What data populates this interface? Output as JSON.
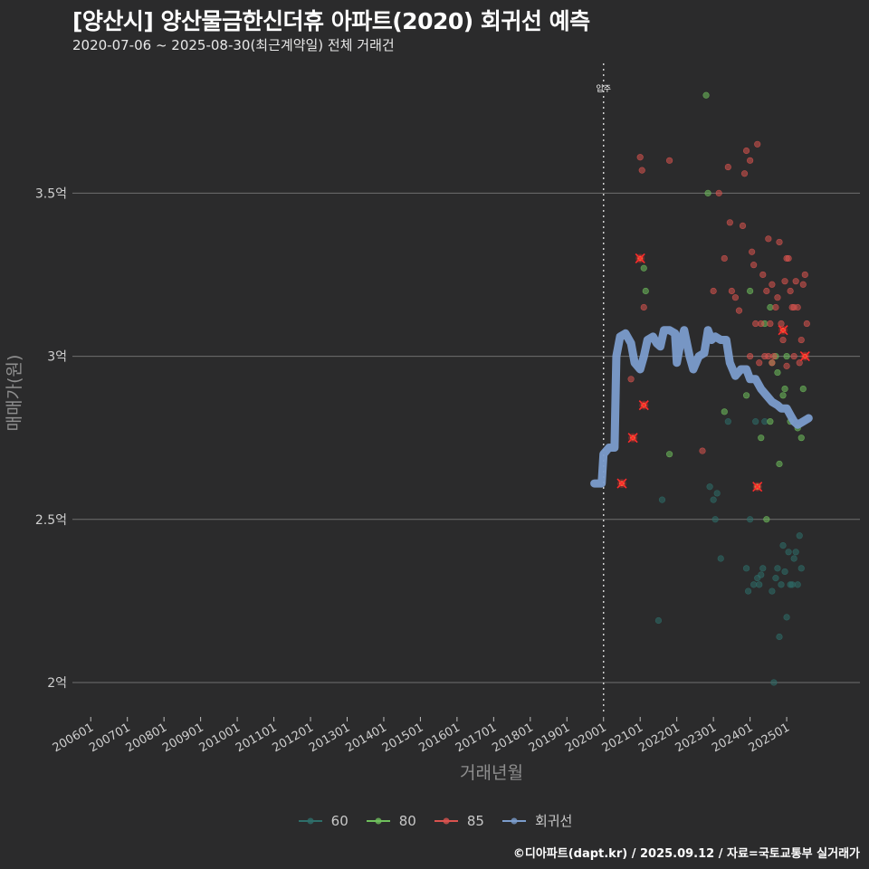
{
  "header": {
    "title": "[양산시] 양산물금한신더휴 아파트(2020) 회귀선 예측",
    "subtitle": "2020-07-06 ~ 2025-08-30(최근계약일) 전체 거래건"
  },
  "footer": {
    "credit": "©디아파트(dapt.kr) / 2025.09.12 / 자료=국토교통부 실거래가"
  },
  "colors": {
    "background": "#2b2b2c",
    "grid": "#6f6f6f",
    "s60": "#2e6e6a",
    "s80": "#6fbf5c",
    "s85": "#d9534f",
    "regression": "#7b9ccc",
    "highlight": "#ff2a2a"
  },
  "chart_data": {
    "type": "scatter",
    "title": "[양산시] 양산물금한신더휴 아파트(2020) 회귀선 예측",
    "xlabel": "거래년월",
    "ylabel": "매매가(원)",
    "xlim": [
      2005.5,
      2027.0
    ],
    "ylim": [
      1.9,
      3.92
    ],
    "y_ticks": [
      {
        "value": 2.0,
        "label": "2억"
      },
      {
        "value": 2.5,
        "label": "2.5억"
      },
      {
        "value": 3.0,
        "label": "3억"
      },
      {
        "value": 3.5,
        "label": "3.5억"
      }
    ],
    "x_ticks": [
      {
        "value": 2006,
        "label": "200601"
      },
      {
        "value": 2007,
        "label": "200701"
      },
      {
        "value": 2008,
        "label": "200801"
      },
      {
        "value": 2009,
        "label": "200901"
      },
      {
        "value": 2010,
        "label": "201001"
      },
      {
        "value": 2011,
        "label": "201101"
      },
      {
        "value": 2012,
        "label": "201201"
      },
      {
        "value": 2013,
        "label": "201301"
      },
      {
        "value": 2014,
        "label": "201401"
      },
      {
        "value": 2015,
        "label": "201501"
      },
      {
        "value": 2016,
        "label": "201601"
      },
      {
        "value": 2017,
        "label": "201701"
      },
      {
        "value": 2018,
        "label": "201801"
      },
      {
        "value": 2019,
        "label": "201901"
      },
      {
        "value": 2020,
        "label": "202001"
      },
      {
        "value": 2021,
        "label": "202101"
      },
      {
        "value": 2022,
        "label": "202201"
      },
      {
        "value": 2023,
        "label": "202301"
      },
      {
        "value": 2024,
        "label": "202401"
      },
      {
        "value": 2025,
        "label": "202501"
      }
    ],
    "annotation": {
      "x": 2020.0,
      "label": "입주"
    },
    "series": [
      {
        "name": "60",
        "color_key": "s60",
        "points": [
          [
            2021.5,
            2.19
          ],
          [
            2021.6,
            2.56
          ],
          [
            2022.9,
            2.6
          ],
          [
            2023.0,
            2.56
          ],
          [
            2023.05,
            2.5
          ],
          [
            2023.1,
            2.58
          ],
          [
            2023.2,
            2.38
          ],
          [
            2023.4,
            2.8
          ],
          [
            2023.9,
            2.35
          ],
          [
            2023.95,
            2.28
          ],
          [
            2024.0,
            2.5
          ],
          [
            2024.1,
            2.3
          ],
          [
            2024.2,
            2.32
          ],
          [
            2024.25,
            2.3
          ],
          [
            2024.3,
            2.33
          ],
          [
            2024.35,
            2.35
          ],
          [
            2024.4,
            2.8
          ],
          [
            2024.6,
            2.28
          ],
          [
            2024.65,
            2.0
          ],
          [
            2024.7,
            2.32
          ],
          [
            2024.75,
            2.35
          ],
          [
            2024.8,
            2.14
          ],
          [
            2024.85,
            2.3
          ],
          [
            2024.9,
            2.42
          ],
          [
            2024.95,
            2.34
          ],
          [
            2025.0,
            2.2
          ],
          [
            2025.05,
            2.4
          ],
          [
            2025.1,
            2.3
          ],
          [
            2025.15,
            2.3
          ],
          [
            2025.2,
            2.38
          ],
          [
            2025.3,
            2.3
          ],
          [
            2025.35,
            2.45
          ],
          [
            2025.4,
            2.35
          ],
          [
            2025.25,
            2.4
          ],
          [
            2024.15,
            2.8
          ]
        ]
      },
      {
        "name": "80",
        "color_key": "s80",
        "points": [
          [
            2021.1,
            3.27
          ],
          [
            2021.15,
            3.2
          ],
          [
            2021.8,
            2.7
          ],
          [
            2022.8,
            3.8
          ],
          [
            2022.85,
            3.5
          ],
          [
            2023.3,
            2.83
          ],
          [
            2023.9,
            2.88
          ],
          [
            2024.0,
            3.2
          ],
          [
            2024.4,
            3.1
          ],
          [
            2024.45,
            2.5
          ],
          [
            2024.55,
            3.15
          ],
          [
            2024.6,
            2.98
          ],
          [
            2024.7,
            3.0
          ],
          [
            2024.75,
            2.95
          ],
          [
            2024.8,
            2.67
          ],
          [
            2024.9,
            2.88
          ],
          [
            2024.95,
            2.9
          ],
          [
            2025.0,
            3.0
          ],
          [
            2025.1,
            2.8
          ],
          [
            2025.3,
            2.78
          ],
          [
            2025.4,
            2.75
          ],
          [
            2025.45,
            2.9
          ],
          [
            2024.55,
            2.8
          ],
          [
            2024.3,
            2.75
          ],
          [
            2024.2,
            2.6
          ]
        ]
      },
      {
        "name": "85",
        "color_key": "s85",
        "points": [
          [
            2021.0,
            3.61
          ],
          [
            2021.05,
            3.57
          ],
          [
            2021.1,
            3.15
          ],
          [
            2021.8,
            3.6
          ],
          [
            2020.75,
            2.93
          ],
          [
            2022.7,
            2.71
          ],
          [
            2023.0,
            3.2
          ],
          [
            2023.15,
            3.5
          ],
          [
            2023.3,
            3.3
          ],
          [
            2023.4,
            3.58
          ],
          [
            2023.45,
            3.41
          ],
          [
            2023.5,
            3.2
          ],
          [
            2023.6,
            3.18
          ],
          [
            2023.7,
            3.14
          ],
          [
            2023.8,
            3.4
          ],
          [
            2023.85,
            3.56
          ],
          [
            2023.9,
            3.63
          ],
          [
            2024.0,
            3.6
          ],
          [
            2024.05,
            3.32
          ],
          [
            2024.1,
            3.28
          ],
          [
            2024.15,
            3.1
          ],
          [
            2024.2,
            3.65
          ],
          [
            2024.3,
            3.1
          ],
          [
            2024.35,
            3.25
          ],
          [
            2024.4,
            3.0
          ],
          [
            2024.45,
            3.2
          ],
          [
            2024.5,
            3.36
          ],
          [
            2024.55,
            3.1
          ],
          [
            2024.6,
            3.22
          ],
          [
            2024.65,
            3.0
          ],
          [
            2024.7,
            3.15
          ],
          [
            2024.75,
            3.18
          ],
          [
            2024.8,
            3.35
          ],
          [
            2024.85,
            3.1
          ],
          [
            2024.9,
            3.05
          ],
          [
            2024.95,
            3.23
          ],
          [
            2025.0,
            2.97
          ],
          [
            2025.05,
            3.3
          ],
          [
            2025.1,
            3.2
          ],
          [
            2025.15,
            3.15
          ],
          [
            2025.2,
            3.0
          ],
          [
            2025.25,
            3.23
          ],
          [
            2025.3,
            3.15
          ],
          [
            2025.35,
            2.98
          ],
          [
            2025.4,
            3.05
          ],
          [
            2025.45,
            3.22
          ],
          [
            2025.5,
            3.25
          ],
          [
            2025.55,
            3.1
          ],
          [
            2024.5,
            3.0
          ],
          [
            2024.6,
            2.98
          ],
          [
            2024.0,
            3.0
          ],
          [
            2024.25,
            2.98
          ],
          [
            2025.0,
            3.3
          ],
          [
            2025.2,
            3.15
          ]
        ]
      }
    ],
    "highlighted_points": [
      [
        2020.5,
        2.61
      ],
      [
        2020.8,
        2.75
      ],
      [
        2021.0,
        3.3
      ],
      [
        2021.1,
        2.85
      ],
      [
        2024.2,
        2.6
      ],
      [
        2024.9,
        3.08
      ],
      [
        2025.5,
        3.0
      ]
    ],
    "regression": {
      "name": "회귀선",
      "color_key": "regression",
      "points": [
        [
          2019.75,
          2.61
        ],
        [
          2019.95,
          2.61
        ],
        [
          2020.0,
          2.7
        ],
        [
          2020.15,
          2.72
        ],
        [
          2020.3,
          2.72
        ],
        [
          2020.35,
          3.0
        ],
        [
          2020.45,
          3.06
        ],
        [
          2020.6,
          3.07
        ],
        [
          2020.75,
          3.04
        ],
        [
          2020.85,
          2.98
        ],
        [
          2021.0,
          2.96
        ],
        [
          2021.1,
          3.0
        ],
        [
          2021.2,
          3.05
        ],
        [
          2021.35,
          3.06
        ],
        [
          2021.45,
          3.04
        ],
        [
          2021.55,
          3.03
        ],
        [
          2021.65,
          3.08
        ],
        [
          2021.8,
          3.08
        ],
        [
          2021.95,
          3.07
        ],
        [
          2022.0,
          2.98
        ],
        [
          2022.1,
          3.04
        ],
        [
          2022.2,
          3.08
        ],
        [
          2022.35,
          3.0
        ],
        [
          2022.45,
          2.96
        ],
        [
          2022.6,
          3.0
        ],
        [
          2022.75,
          3.01
        ],
        [
          2022.85,
          3.08
        ],
        [
          2022.95,
          3.05
        ],
        [
          2023.05,
          3.06
        ],
        [
          2023.2,
          3.05
        ],
        [
          2023.35,
          3.05
        ],
        [
          2023.45,
          2.98
        ],
        [
          2023.6,
          2.94
        ],
        [
          2023.75,
          2.96
        ],
        [
          2023.9,
          2.96
        ],
        [
          2024.0,
          2.93
        ],
        [
          2024.15,
          2.93
        ],
        [
          2024.3,
          2.9
        ],
        [
          2024.45,
          2.88
        ],
        [
          2024.6,
          2.86
        ],
        [
          2024.75,
          2.85
        ],
        [
          2024.85,
          2.84
        ],
        [
          2025.0,
          2.84
        ],
        [
          2025.1,
          2.82
        ],
        [
          2025.2,
          2.8
        ],
        [
          2025.3,
          2.79
        ],
        [
          2025.45,
          2.8
        ],
        [
          2025.6,
          2.81
        ]
      ]
    },
    "legend": {
      "position": "bottom",
      "items": [
        {
          "label": "60",
          "color_key": "s60"
        },
        {
          "label": "80",
          "color_key": "s80"
        },
        {
          "label": "85",
          "color_key": "s85"
        },
        {
          "label": "회귀선",
          "color_key": "regression"
        }
      ]
    }
  }
}
